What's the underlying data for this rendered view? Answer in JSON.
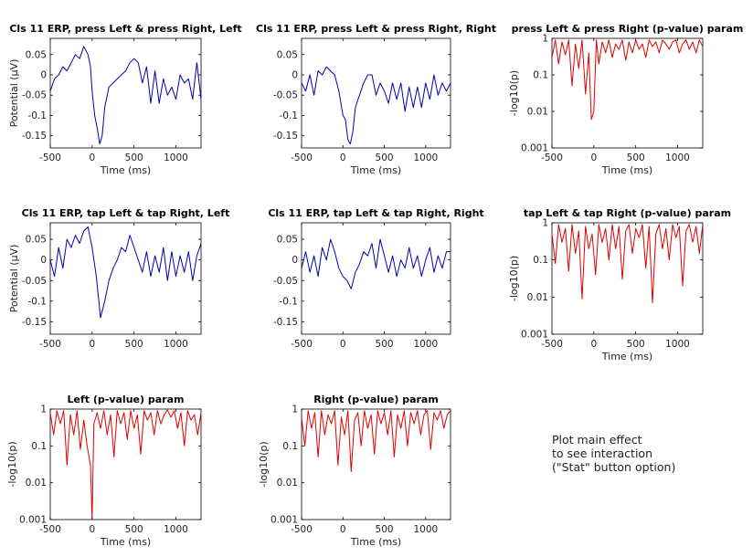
{
  "window": {
    "background": "#ffffff"
  },
  "note": {
    "line1": "Plot main effect",
    "line2": "to see interaction",
    "line3": "(\"Stat\" button option)"
  },
  "colors": {
    "erp": "#0000b0",
    "pval": "#e00000",
    "axis": "#000000",
    "text": "#222222"
  },
  "chart_data": [
    {
      "type": "line",
      "id": "erp-press-left",
      "title": "Cls 11 ERP, press Left & press Right, Left",
      "xlabel": "Time (ms)",
      "ylabel": "Potential (μV)",
      "xlim": [
        -500,
        1300
      ],
      "ylim": [
        -0.18,
        0.09
      ],
      "yscale": "linear",
      "xticks": [
        -500,
        0,
        500,
        1000
      ],
      "xtick_labels": [
        "-500",
        "0",
        "500",
        "1000"
      ],
      "yticks": [
        0.05,
        0,
        -0.05,
        -0.1,
        -0.15
      ],
      "ytick_labels": [
        "0.05",
        "0",
        "-0.05",
        "-0.1",
        "-0.15"
      ],
      "color": "#0000b0",
      "series": [
        {
          "x": [
            -500,
            -450,
            -400,
            -350,
            -300,
            -250,
            -200,
            -150,
            -100,
            -50,
            -20,
            0,
            30,
            60,
            90,
            120,
            150,
            200,
            250,
            300,
            350,
            400,
            450,
            500,
            550,
            600,
            650,
            700,
            750,
            800,
            850,
            900,
            950,
            1000,
            1050,
            1100,
            1150,
            1200,
            1250,
            1300
          ],
          "values": [
            -0.04,
            -0.01,
            0.0,
            0.02,
            0.01,
            0.03,
            0.05,
            0.04,
            0.07,
            0.05,
            0.02,
            -0.04,
            -0.1,
            -0.13,
            -0.17,
            -0.15,
            -0.08,
            -0.03,
            -0.02,
            -0.01,
            0.0,
            0.01,
            0.03,
            0.04,
            0.03,
            -0.02,
            0.02,
            -0.07,
            0.01,
            -0.07,
            -0.01,
            -0.05,
            -0.03,
            -0.06,
            0.0,
            -0.02,
            -0.01,
            -0.06,
            0.03,
            -0.06
          ]
        }
      ]
    },
    {
      "type": "line",
      "id": "erp-press-right",
      "title": "Cls 11 ERP, press Left & press Right, Right",
      "xlabel": "Time (ms)",
      "ylabel": "",
      "xlim": [
        -500,
        1300
      ],
      "ylim": [
        -0.18,
        0.09
      ],
      "yscale": "linear",
      "xticks": [
        -500,
        0,
        500,
        1000
      ],
      "xtick_labels": [
        "-500",
        "0",
        "500",
        "1000"
      ],
      "yticks": [
        0.05,
        0,
        -0.05,
        -0.1,
        -0.15
      ],
      "ytick_labels": [
        "0.05",
        "0",
        "-0.05",
        "-0.1",
        "-0.15"
      ],
      "color": "#0000b0",
      "series": [
        {
          "x": [
            -500,
            -450,
            -400,
            -350,
            -300,
            -250,
            -200,
            -150,
            -100,
            -50,
            0,
            30,
            60,
            90,
            120,
            150,
            200,
            250,
            300,
            350,
            400,
            450,
            500,
            550,
            600,
            650,
            700,
            750,
            800,
            850,
            900,
            950,
            1000,
            1050,
            1100,
            1150,
            1200,
            1250,
            1300
          ],
          "values": [
            -0.02,
            -0.04,
            0.0,
            -0.05,
            0.01,
            0.0,
            0.02,
            0.01,
            0.0,
            -0.04,
            -0.1,
            -0.11,
            -0.16,
            -0.17,
            -0.14,
            -0.08,
            -0.05,
            -0.02,
            0.0,
            0.0,
            -0.05,
            -0.02,
            -0.04,
            -0.07,
            -0.02,
            -0.06,
            -0.02,
            -0.09,
            -0.03,
            -0.08,
            -0.03,
            -0.08,
            -0.02,
            -0.06,
            0.0,
            -0.05,
            -0.02,
            -0.04,
            -0.02
          ]
        }
      ]
    },
    {
      "type": "line",
      "id": "pval-press",
      "title": "press Left & press Right (p-value) param",
      "xlabel": "Time (ms)",
      "ylabel": "-log10(p)",
      "xlim": [
        -500,
        1300
      ],
      "ylim": [
        0.001,
        1
      ],
      "yscale": "log",
      "xticks": [
        -500,
        0,
        500,
        1000
      ],
      "xtick_labels": [
        "-500",
        "0",
        "500",
        "1000"
      ],
      "yticks": [
        1,
        0.1,
        0.01,
        0.001
      ],
      "ytick_labels": [
        "1",
        "0.1",
        "0.01",
        "0.001"
      ],
      "color": "#e00000",
      "series": [
        {
          "x": [
            -500,
            -460,
            -420,
            -380,
            -340,
            -300,
            -260,
            -220,
            -180,
            -140,
            -100,
            -60,
            -30,
            0,
            30,
            60,
            100,
            140,
            180,
            220,
            260,
            300,
            340,
            380,
            420,
            460,
            500,
            540,
            580,
            620,
            660,
            700,
            740,
            780,
            820,
            860,
            900,
            940,
            980,
            1020,
            1060,
            1100,
            1140,
            1180,
            1220,
            1260,
            1300
          ],
          "values": [
            0.3,
            0.9,
            0.2,
            0.8,
            0.35,
            0.9,
            0.05,
            0.7,
            0.15,
            0.9,
            0.03,
            0.4,
            0.006,
            0.01,
            0.9,
            0.2,
            0.8,
            0.4,
            0.9,
            0.3,
            0.7,
            0.5,
            0.9,
            0.25,
            0.8,
            0.4,
            0.9,
            0.5,
            0.7,
            0.3,
            0.9,
            0.6,
            0.8,
            0.4,
            0.9,
            0.7,
            0.5,
            0.8,
            0.9,
            0.4,
            0.7,
            0.9,
            0.5,
            0.8,
            0.4,
            0.9,
            0.6
          ]
        }
      ]
    },
    {
      "type": "line",
      "id": "erp-tap-left",
      "title": "Cls 11 ERP, tap Left & tap Right, Left",
      "xlabel": "",
      "ylabel": "Potential (μV)",
      "xlim": [
        -500,
        1300
      ],
      "ylim": [
        -0.18,
        0.09
      ],
      "yscale": "linear",
      "xticks": [
        -500,
        0,
        500,
        1000
      ],
      "xtick_labels": [
        "-500",
        "0",
        "500",
        "1000"
      ],
      "yticks": [
        0.05,
        0,
        -0.05,
        -0.1,
        -0.15
      ],
      "ytick_labels": [
        "0.05",
        "0",
        "-0.05",
        "-0.1",
        "-0.15"
      ],
      "color": "#0000b0",
      "series": [
        {
          "x": [
            -500,
            -450,
            -400,
            -350,
            -300,
            -250,
            -200,
            -150,
            -100,
            -50,
            0,
            50,
            100,
            150,
            200,
            250,
            300,
            350,
            400,
            450,
            500,
            550,
            600,
            650,
            700,
            750,
            800,
            850,
            900,
            950,
            1000,
            1050,
            1100,
            1150,
            1200,
            1250,
            1300
          ],
          "values": [
            0.0,
            -0.04,
            0.03,
            -0.02,
            0.05,
            0.03,
            0.06,
            0.04,
            0.07,
            0.08,
            0.03,
            -0.04,
            -0.14,
            -0.1,
            -0.05,
            -0.02,
            0.0,
            0.03,
            0.02,
            0.06,
            0.03,
            0.0,
            -0.03,
            0.02,
            -0.04,
            0.01,
            -0.03,
            0.03,
            -0.05,
            0.02,
            -0.04,
            0.01,
            -0.03,
            0.02,
            -0.05,
            0.01,
            0.04
          ]
        }
      ]
    },
    {
      "type": "line",
      "id": "erp-tap-right",
      "title": "Cls 11 ERP, tap Left & tap Right, Right",
      "xlabel": "",
      "ylabel": "",
      "xlim": [
        -500,
        1300
      ],
      "ylim": [
        -0.18,
        0.09
      ],
      "yscale": "linear",
      "xticks": [
        -500,
        0,
        500,
        1000
      ],
      "xtick_labels": [
        "-500",
        "0",
        "500",
        "1000"
      ],
      "yticks": [
        0.05,
        0,
        -0.05,
        -0.1,
        -0.15
      ],
      "ytick_labels": [
        "0.05",
        "0",
        "-0.05",
        "-0.1",
        "-0.15"
      ],
      "color": "#0000b0",
      "series": [
        {
          "x": [
            -500,
            -450,
            -400,
            -350,
            -300,
            -250,
            -200,
            -150,
            -100,
            -50,
            0,
            50,
            100,
            150,
            200,
            250,
            300,
            350,
            400,
            450,
            500,
            550,
            600,
            650,
            700,
            750,
            800,
            850,
            900,
            950,
            1000,
            1050,
            1100,
            1150,
            1200,
            1250,
            1300
          ],
          "values": [
            -0.02,
            0.02,
            -0.03,
            0.01,
            -0.04,
            0.03,
            0.0,
            0.05,
            0.02,
            -0.02,
            -0.04,
            -0.05,
            -0.07,
            -0.03,
            -0.01,
            0.02,
            0.01,
            0.04,
            -0.02,
            0.05,
            0.01,
            -0.03,
            0.01,
            -0.04,
            0.0,
            -0.02,
            0.03,
            -0.02,
            0.01,
            -0.04,
            0.0,
            0.03,
            -0.03,
            0.01,
            -0.02,
            0.02,
            0.02
          ]
        }
      ]
    },
    {
      "type": "line",
      "id": "pval-tap",
      "title": "tap Left & tap Right (p-value) param",
      "xlabel": "Time (ms)",
      "ylabel": "-log10(p)",
      "xlim": [
        -500,
        1300
      ],
      "ylim": [
        0.001,
        1
      ],
      "yscale": "log",
      "xticks": [
        -500,
        0,
        500,
        1000
      ],
      "xtick_labels": [
        "-500",
        "0",
        "500",
        "1000"
      ],
      "yticks": [
        1,
        0.1,
        0.01,
        0.001
      ],
      "ytick_labels": [
        "1",
        "0.1",
        "0.01",
        "0.001"
      ],
      "color": "#e00000",
      "series": [
        {
          "x": [
            -500,
            -460,
            -420,
            -380,
            -340,
            -300,
            -260,
            -220,
            -180,
            -140,
            -100,
            -60,
            -20,
            20,
            60,
            100,
            140,
            180,
            220,
            260,
            300,
            340,
            380,
            420,
            460,
            500,
            540,
            580,
            620,
            660,
            700,
            740,
            780,
            820,
            860,
            900,
            940,
            980,
            1020,
            1060,
            1100,
            1140,
            1180,
            1220,
            1260,
            1300
          ],
          "values": [
            0.5,
            0.08,
            0.9,
            0.3,
            0.7,
            0.05,
            0.9,
            0.15,
            0.6,
            0.009,
            0.8,
            0.2,
            0.5,
            0.04,
            0.9,
            0.3,
            0.7,
            0.1,
            0.9,
            0.2,
            0.8,
            0.03,
            0.6,
            0.9,
            0.15,
            0.7,
            0.4,
            0.9,
            0.06,
            0.8,
            0.007,
            0.5,
            0.9,
            0.2,
            0.7,
            0.1,
            0.9,
            0.4,
            0.8,
            0.02,
            0.6,
            0.9,
            0.3,
            0.8,
            0.15,
            0.9
          ]
        }
      ]
    },
    {
      "type": "line",
      "id": "pval-left",
      "title": "Left (p-value) param",
      "xlabel": "Time (ms)",
      "ylabel": "-log10(p)",
      "xlim": [
        -500,
        1300
      ],
      "ylim": [
        0.001,
        1
      ],
      "yscale": "log",
      "xticks": [
        -500,
        0,
        500,
        1000
      ],
      "xtick_labels": [
        "-500",
        "0",
        "500",
        "1000"
      ],
      "yticks": [
        1,
        0.1,
        0.01,
        0.001
      ],
      "ytick_labels": [
        "1",
        "0.1",
        "0.01",
        "0.001"
      ],
      "color": "#e00000",
      "series": [
        {
          "x": [
            -500,
            -460,
            -420,
            -380,
            -340,
            -300,
            -260,
            -220,
            -180,
            -140,
            -100,
            -60,
            -20,
            0,
            20,
            60,
            100,
            140,
            180,
            220,
            260,
            300,
            340,
            380,
            420,
            460,
            500,
            540,
            580,
            620,
            660,
            700,
            740,
            780,
            820,
            860,
            900,
            940,
            980,
            1020,
            1060,
            1100,
            1140,
            1180,
            1220,
            1260,
            1300
          ],
          "values": [
            0.8,
            0.2,
            0.9,
            0.4,
            0.9,
            0.03,
            0.7,
            0.2,
            0.9,
            0.08,
            0.5,
            0.1,
            0.03,
            0.001,
            0.4,
            0.8,
            0.3,
            0.9,
            0.2,
            0.7,
            0.05,
            0.9,
            0.4,
            0.8,
            0.15,
            0.9,
            0.3,
            0.7,
            0.06,
            0.9,
            0.5,
            0.8,
            0.2,
            0.9,
            0.4,
            0.7,
            0.95,
            0.6,
            0.9,
            0.3,
            0.8,
            0.1,
            0.9,
            0.5,
            0.7,
            0.2,
            0.8
          ]
        }
      ]
    },
    {
      "type": "line",
      "id": "pval-right",
      "title": "Right (p-value) param",
      "xlabel": "Time (ms)",
      "ylabel": "-log10(p)",
      "xlim": [
        -500,
        1300
      ],
      "ylim": [
        0.001,
        1
      ],
      "yscale": "log",
      "xticks": [
        -500,
        0,
        500,
        1000
      ],
      "xtick_labels": [
        "-500",
        "0",
        "500",
        "1000"
      ],
      "yticks": [
        1,
        0.1,
        0.01,
        0.001
      ],
      "ytick_labels": [
        "1",
        "0.1",
        "0.01",
        "0.001"
      ],
      "color": "#e00000",
      "series": [
        {
          "x": [
            -500,
            -460,
            -420,
            -380,
            -340,
            -300,
            -260,
            -220,
            -180,
            -140,
            -100,
            -60,
            -20,
            20,
            60,
            100,
            140,
            180,
            220,
            260,
            300,
            340,
            380,
            420,
            460,
            500,
            540,
            580,
            620,
            660,
            700,
            740,
            780,
            820,
            860,
            900,
            940,
            980,
            1020,
            1060,
            1100,
            1140,
            1180,
            1220,
            1260,
            1300
          ],
          "values": [
            0.6,
            0.1,
            0.9,
            0.3,
            0.8,
            0.05,
            0.9,
            0.2,
            0.7,
            0.4,
            0.9,
            0.03,
            0.6,
            0.2,
            0.9,
            0.02,
            0.5,
            0.8,
            0.1,
            0.9,
            0.3,
            0.7,
            0.06,
            0.9,
            0.4,
            0.8,
            0.2,
            0.9,
            0.05,
            0.7,
            0.3,
            0.9,
            0.1,
            0.8,
            0.4,
            0.9,
            0.2,
            0.7,
            0.9,
            0.08,
            0.8,
            0.5,
            0.9,
            0.3,
            0.7,
            0.9
          ]
        }
      ]
    }
  ]
}
